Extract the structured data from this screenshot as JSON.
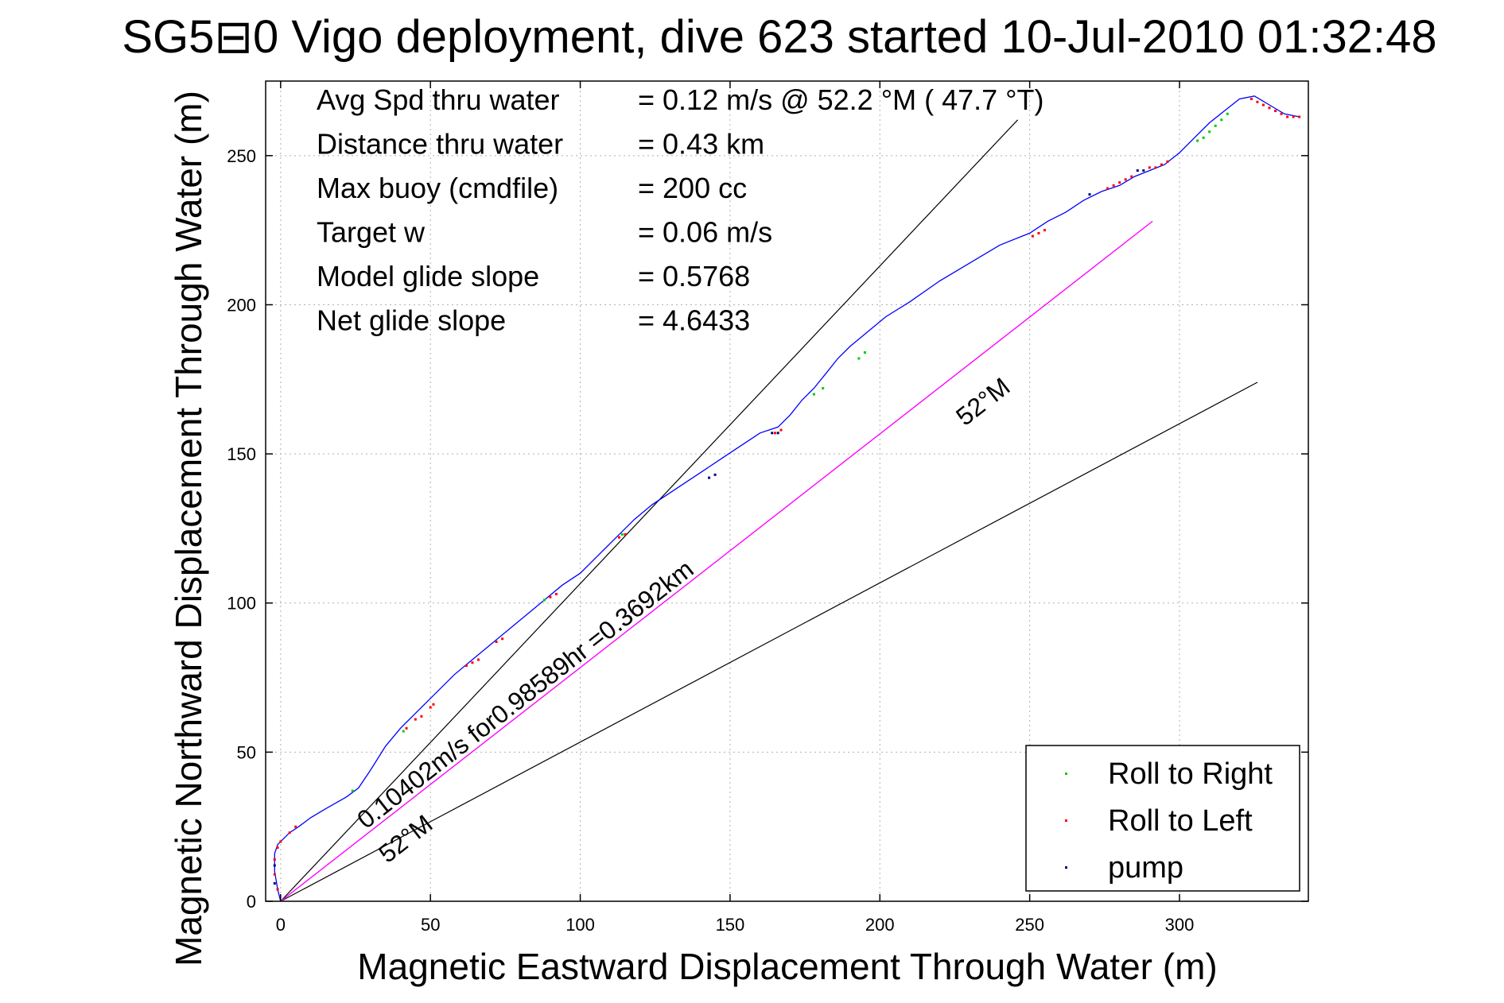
{
  "chart_data": {
    "type": "line",
    "title": "SG5⊟0 Vigo deployment, dive 623 started 10-Jul-2010 01:32:48",
    "xlabel": "Magnetic Eastward Displacement Through Water (m)",
    "ylabel": "Magnetic Northward Displacement Through Water (m)",
    "xlim": [
      -5,
      343
    ],
    "ylim": [
      0,
      275
    ],
    "xticks": [
      0,
      50,
      100,
      150,
      200,
      250,
      300
    ],
    "yticks": [
      0,
      50,
      100,
      150,
      200,
      250
    ],
    "grid": true,
    "legend_position": "bottom-right",
    "stats": [
      {
        "label": "Avg Spd thru water",
        "value": "=  0.12 m/s @  52.2 °M ( 47.7 °T)"
      },
      {
        "label": "Distance thru water",
        "value": "=  0.43 km"
      },
      {
        "label": "Max buoy (cmdfile)",
        "value": "= 200 cc"
      },
      {
        "label": "Target w",
        "value": "= 0.06 m/s"
      },
      {
        "label": "Model glide slope",
        "value": "= 0.5768"
      },
      {
        "label": "Net glide slope",
        "value": "= 4.6433"
      }
    ],
    "annotations": {
      "current_label": "0.10402m/s for0.98589hr =0.3692km",
      "heading_label_upper": "52°M",
      "heading_label_lower": "52°M"
    },
    "legend": [
      {
        "label": "Roll to Right",
        "color": "#00cc00"
      },
      {
        "label": "Roll to Left",
        "color": "#ff0000"
      },
      {
        "label": "pump",
        "color": "#000080"
      }
    ],
    "colors": {
      "track": "#0000ff",
      "current": "#ff00ff",
      "reference": "#000000",
      "grid": "#b0b0b0"
    },
    "reference_lines": [
      {
        "x": [
          0,
          246
        ],
        "y": [
          0,
          262
        ]
      },
      {
        "x": [
          0,
          326
        ],
        "y": [
          0,
          174
        ]
      }
    ],
    "current_line": {
      "x": [
        0,
        291
      ],
      "y": [
        0,
        228
      ]
    },
    "series": [
      {
        "name": "track",
        "x": [
          0,
          -1,
          -2,
          -2,
          -1,
          1,
          3,
          6,
          10,
          15,
          22,
          26,
          30,
          35,
          40,
          46,
          52,
          58,
          64,
          70,
          76,
          82,
          88,
          94,
          100,
          106,
          112,
          118,
          124,
          130,
          136,
          142,
          148,
          154,
          160,
          166,
          170,
          174,
          178,
          182,
          186,
          190,
          196,
          202,
          210,
          220,
          230,
          240,
          250,
          256,
          262,
          268,
          274,
          280,
          285,
          290,
          295,
          300,
          305,
          310,
          315,
          320,
          325,
          330,
          335,
          340
        ],
        "y": [
          0,
          4,
          10,
          16,
          19,
          21,
          23,
          25,
          28,
          31,
          35,
          38,
          44,
          52,
          58,
          64,
          70,
          76,
          81,
          86,
          91,
          96,
          101,
          106,
          110,
          116,
          122,
          128,
          133,
          137,
          141,
          145,
          149,
          153,
          157,
          159,
          163,
          168,
          172,
          177,
          182,
          186,
          191,
          196,
          201,
          208,
          214,
          220,
          224,
          228,
          231,
          235,
          238,
          240,
          243,
          245,
          247,
          251,
          256,
          261,
          265,
          269,
          270,
          267,
          264,
          263
        ]
      }
    ],
    "markers": {
      "roll_right": [
        [
          24,
          37
        ],
        [
          41,
          57
        ],
        [
          88,
          101
        ],
        [
          114,
          123
        ],
        [
          178,
          170
        ],
        [
          181,
          172
        ],
        [
          193,
          182
        ],
        [
          195,
          184
        ],
        [
          306,
          255
        ],
        [
          308,
          256
        ],
        [
          310,
          258
        ],
        [
          312,
          260
        ],
        [
          314,
          262
        ],
        [
          316,
          264
        ]
      ],
      "roll_left": [
        [
          -1,
          4
        ],
        [
          -2,
          9
        ],
        [
          -2,
          14
        ],
        [
          -1,
          18
        ],
        [
          0,
          20
        ],
        [
          3,
          23
        ],
        [
          5,
          25
        ],
        [
          42,
          58
        ],
        [
          45,
          61
        ],
        [
          47,
          62
        ],
        [
          50,
          65
        ],
        [
          51,
          66
        ],
        [
          62,
          79
        ],
        [
          64,
          80
        ],
        [
          66,
          81
        ],
        [
          72,
          87
        ],
        [
          74,
          88
        ],
        [
          90,
          102
        ],
        [
          92,
          103
        ],
        [
          113,
          122
        ],
        [
          115,
          123
        ],
        [
          165,
          157
        ],
        [
          167,
          158
        ],
        [
          251,
          223
        ],
        [
          253,
          224
        ],
        [
          255,
          225
        ],
        [
          276,
          239
        ],
        [
          278,
          240
        ],
        [
          280,
          241
        ],
        [
          282,
          242
        ],
        [
          284,
          243
        ],
        [
          290,
          246
        ],
        [
          292,
          246
        ],
        [
          294,
          247
        ],
        [
          296,
          248
        ],
        [
          324,
          269
        ],
        [
          326,
          268
        ],
        [
          328,
          267
        ],
        [
          330,
          266
        ],
        [
          332,
          265
        ],
        [
          334,
          264
        ],
        [
          336,
          263
        ],
        [
          338,
          263
        ],
        [
          340,
          263
        ]
      ],
      "pump": [
        [
          -2,
          6
        ],
        [
          -2,
          12
        ],
        [
          143,
          142
        ],
        [
          145,
          143
        ],
        [
          164,
          157
        ],
        [
          166,
          157
        ],
        [
          270,
          237
        ],
        [
          286,
          245
        ],
        [
          288,
          245
        ]
      ]
    }
  }
}
